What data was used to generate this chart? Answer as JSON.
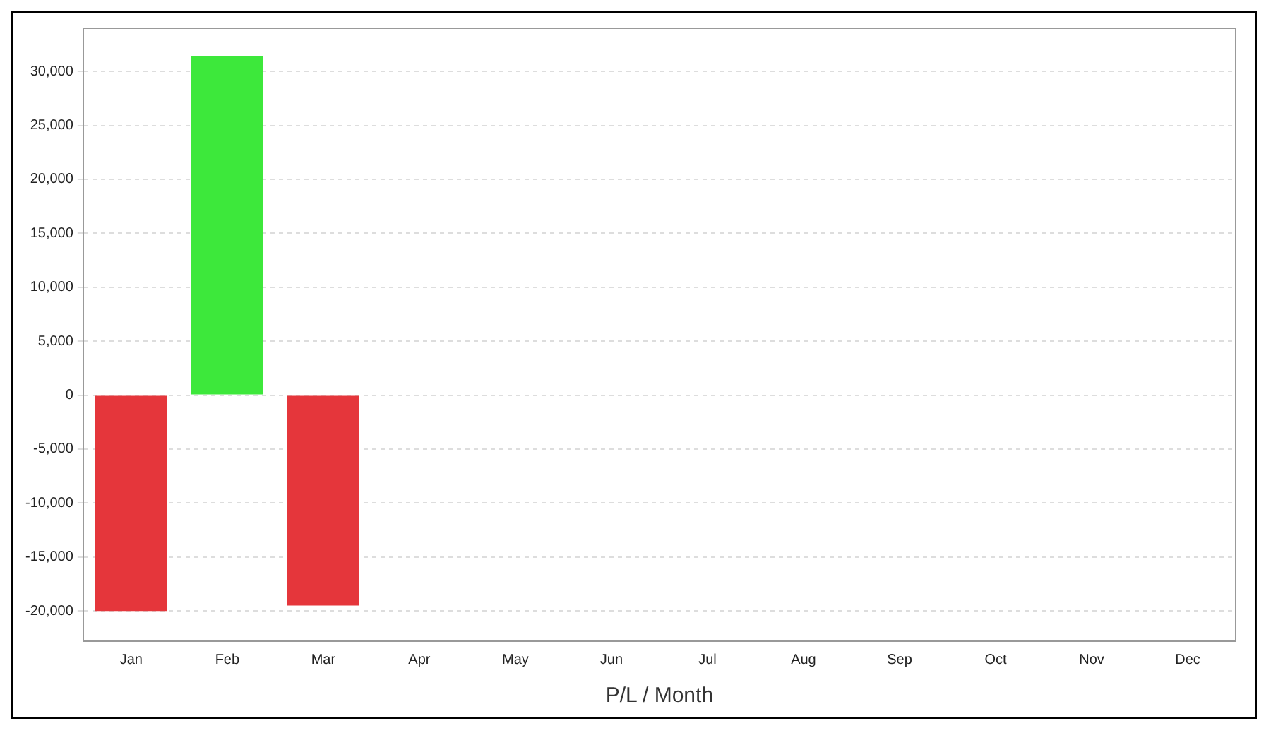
{
  "chart_data": {
    "type": "bar",
    "xlabel": "P/L / Month",
    "categories": [
      "Jan",
      "Feb",
      "Mar",
      "Apr",
      "May",
      "Jun",
      "Jul",
      "Aug",
      "Sep",
      "Oct",
      "Nov",
      "Dec"
    ],
    "values": [
      -20000,
      31400,
      -19500,
      null,
      null,
      null,
      null,
      null,
      null,
      null,
      null,
      null
    ],
    "colors": [
      "#e5363b",
      "#3de83b",
      "#e5363b",
      "#e5363b",
      "#e5363b",
      "#e5363b",
      "#e5363b",
      "#e5363b",
      "#e5363b",
      "#e5363b",
      "#e5363b",
      "#e5363b"
    ],
    "ylim": [
      -22800,
      34000
    ],
    "yticks": [
      {
        "value": -20000,
        "label": "-20,000"
      },
      {
        "value": -15000,
        "label": "-15,000"
      },
      {
        "value": -10000,
        "label": "-10,000"
      },
      {
        "value": -5000,
        "label": "-5,000"
      },
      0,
      {
        "value": 5000,
        "label": "5,000"
      },
      {
        "value": 10000,
        "label": "10,000"
      },
      {
        "value": 15000,
        "label": "15,000"
      },
      {
        "value": 20000,
        "label": "20,000"
      },
      {
        "value": 25000,
        "label": "25,000"
      },
      {
        "value": 30000,
        "label": "30,000"
      }
    ],
    "grid": "y",
    "legend": false
  }
}
